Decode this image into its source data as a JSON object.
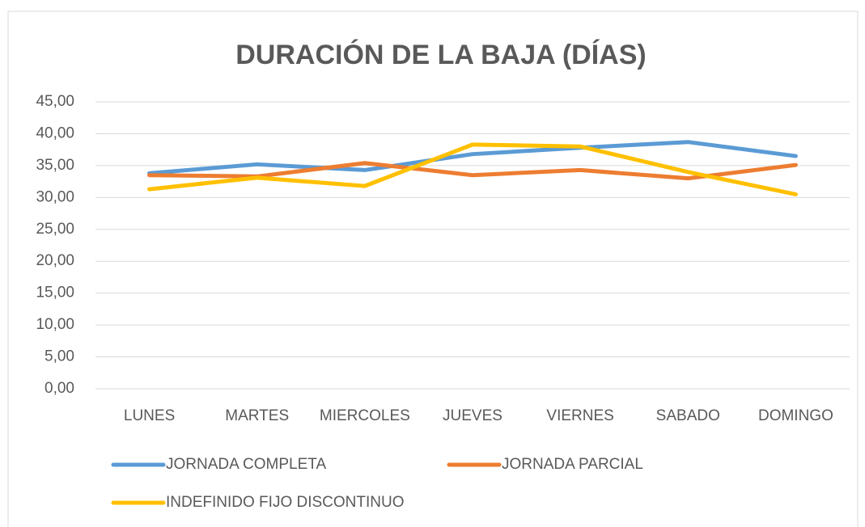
{
  "chart_data": {
    "type": "line",
    "title": "DURACIÓN DE LA BAJA (DÍAS)",
    "categories": [
      "LUNES",
      "MARTES",
      "MIERCOLES",
      "JUEVES",
      "VIERNES",
      "SABADO",
      "DOMINGO"
    ],
    "series": [
      {
        "name": "JORNADA COMPLETA",
        "color": "#5b9bd5",
        "values": [
          33.8,
          35.2,
          34.3,
          36.8,
          37.8,
          38.7,
          36.5
        ]
      },
      {
        "name": "JORNADA PARCIAL",
        "color": "#ed7d31",
        "values": [
          33.5,
          33.3,
          35.4,
          33.5,
          34.3,
          33.0,
          35.1
        ]
      },
      {
        "name": "INDEFINIDO FIJO DISCONTINUO",
        "color": "#ffc000",
        "values": [
          31.3,
          33.1,
          31.8,
          38.3,
          38.0,
          34.0,
          30.5
        ]
      }
    ],
    "ylim": [
      0,
      45
    ],
    "yticks": [
      {
        "value": 0,
        "label": "0,00"
      },
      {
        "value": 5,
        "label": "5,00"
      },
      {
        "value": 10,
        "label": "10,00"
      },
      {
        "value": 15,
        "label": "15,00"
      },
      {
        "value": 20,
        "label": "20,00"
      },
      {
        "value": 25,
        "label": "25,00"
      },
      {
        "value": 30,
        "label": "30,00"
      },
      {
        "value": 35,
        "label": "35,00"
      },
      {
        "value": 40,
        "label": "40,00"
      },
      {
        "value": 45,
        "label": "45,00"
      }
    ],
    "grid": true,
    "legend": "bottom"
  }
}
